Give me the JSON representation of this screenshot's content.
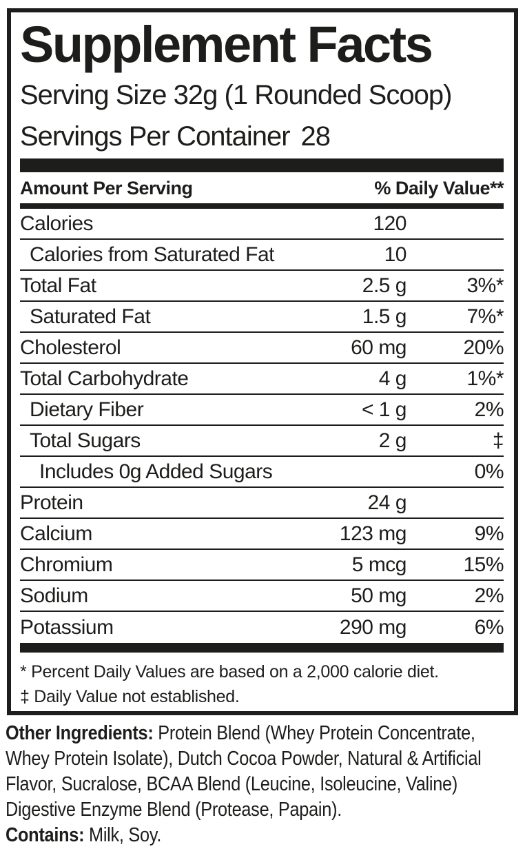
{
  "colors": {
    "ink": "#1d1d1b",
    "background": "#ffffff"
  },
  "label": {
    "title": "Supplement Facts",
    "serving_size": "Serving Size 32g (1 Rounded Scoop)",
    "servings_per_container_label": "Servings Per Container",
    "servings_per_container_value": "28",
    "header": {
      "amount": "Amount Per Serving",
      "daily_value": "% Daily Value**"
    },
    "rows": [
      {
        "name": "Calories",
        "amount": "120",
        "dv": "",
        "indent": 0
      },
      {
        "name": "Calories from Saturated Fat",
        "amount": "10",
        "dv": "",
        "indent": 1
      },
      {
        "name": "Total Fat",
        "amount": "2.5 g",
        "dv": "3%*",
        "indent": 0
      },
      {
        "name": "Saturated Fat",
        "amount": "1.5 g",
        "dv": "7%*",
        "indent": 1
      },
      {
        "name": "Cholesterol",
        "amount": "60 mg",
        "dv": "20%",
        "indent": 0
      },
      {
        "name": "Total Carbohydrate",
        "amount": "4 g",
        "dv": "1%*",
        "indent": 0
      },
      {
        "name": "Dietary Fiber",
        "amount": "< 1 g",
        "dv": "2%",
        "indent": 1
      },
      {
        "name": "Total Sugars",
        "amount": "2 g",
        "dv": "‡",
        "indent": 1
      },
      {
        "name": "Includes 0g Added Sugars",
        "amount": "",
        "dv": "0%",
        "indent": 2
      },
      {
        "name": "Protein",
        "amount": "24 g",
        "dv": "",
        "indent": 0
      },
      {
        "name": "Calcium",
        "amount": "123 mg",
        "dv": "9%",
        "indent": 0
      },
      {
        "name": "Chromium",
        "amount": "5 mcg",
        "dv": "15%",
        "indent": 0
      },
      {
        "name": "Sodium",
        "amount": "50 mg",
        "dv": "2%",
        "indent": 0
      },
      {
        "name": "Potassium",
        "amount": "290 mg",
        "dv": "6%",
        "indent": 0
      }
    ],
    "footnotes": [
      "* Percent Daily Values are based on a 2,000 calorie diet.",
      "‡ Daily Value not established."
    ]
  },
  "other_ingredients": {
    "label": "Other Ingredients:",
    "text": " Protein Blend (Whey Protein Concentrate, Whey Protein Isolate), Dutch Cocoa Powder, Natural & Artificial Flavor, Sucralose, BCAA Blend (Leucine, Isoleucine, Valine) Digestive Enzyme Blend (Protease, Papain)."
  },
  "contains": {
    "label": "Contains:",
    "text": " Milk, Soy."
  }
}
